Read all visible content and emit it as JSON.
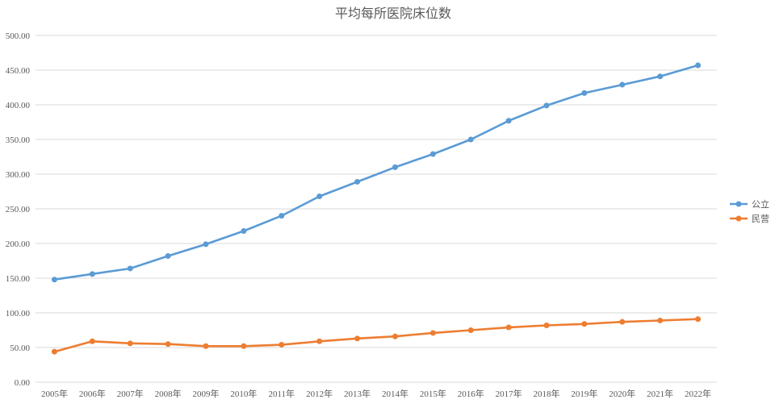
{
  "chart_data": {
    "type": "line",
    "title": "平均每所医院床位数",
    "xlabel": "",
    "ylabel": "",
    "categories": [
      "2005年",
      "2006年",
      "2007年",
      "2008年",
      "2009年",
      "2010年",
      "2011年",
      "2012年",
      "2013年",
      "2014年",
      "2015年",
      "2016年",
      "2017年",
      "2018年",
      "2019年",
      "2020年",
      "2021年",
      "2022年"
    ],
    "ylim": [
      0,
      500
    ],
    "yticks": [
      "0.00",
      "50.00",
      "100.00",
      "150.00",
      "200.00",
      "250.00",
      "300.00",
      "350.00",
      "400.00",
      "450.00",
      "500.00"
    ],
    "grid": true,
    "legend_position": "right",
    "series": [
      {
        "name": "公立",
        "color": "#5b9bd5",
        "values": [
          148,
          156,
          164,
          182,
          199,
          218,
          240,
          268,
          289,
          310,
          329,
          350,
          377,
          399,
          417,
          429,
          441,
          457
        ]
      },
      {
        "name": "民营",
        "color": "#ed7d31",
        "values": [
          44,
          59,
          56,
          55,
          52,
          52,
          54,
          59,
          63,
          66,
          71,
          75,
          79,
          82,
          84,
          87,
          89,
          91
        ]
      }
    ]
  }
}
